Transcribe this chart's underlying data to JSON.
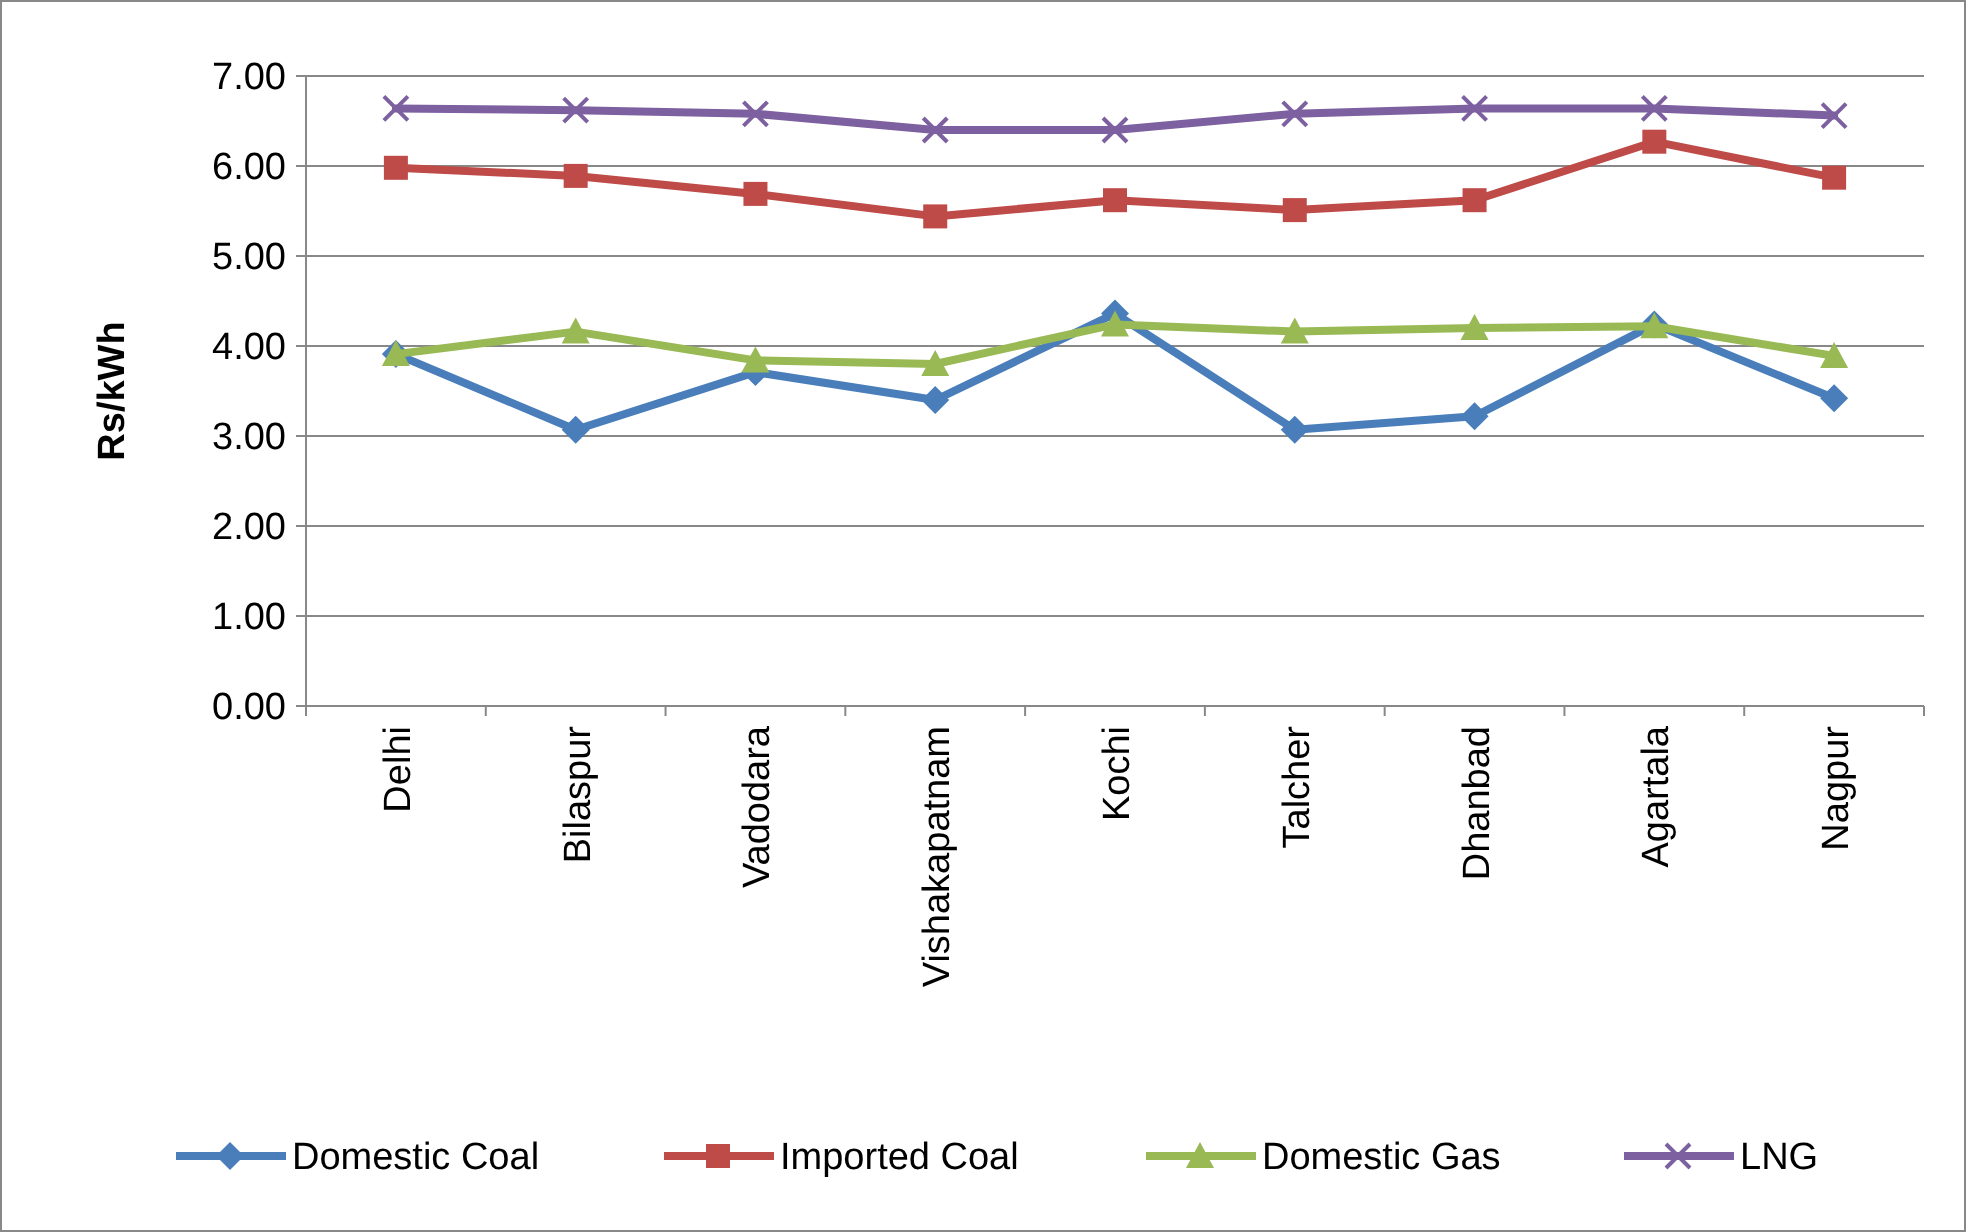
{
  "chart_data": {
    "type": "line",
    "ylabel": "Rs/kWh",
    "categories": [
      "Delhi",
      "Bilaspur",
      "Vadodara",
      "Vishakapatnam",
      "Kochi",
      "Talcher",
      "Dhanbad",
      "Agartala",
      "Nagpur"
    ],
    "series": [
      {
        "name": "Domestic Coal",
        "color": "#4a7ebb",
        "marker": "diamond",
        "values": [
          3.91,
          3.07,
          3.71,
          3.4,
          4.36,
          3.07,
          3.22,
          4.24,
          3.42
        ]
      },
      {
        "name": "Imported Coal",
        "color": "#be4b48",
        "marker": "square",
        "values": [
          5.98,
          5.89,
          5.69,
          5.44,
          5.62,
          5.51,
          5.62,
          6.27,
          5.87
        ]
      },
      {
        "name": "Domestic Gas",
        "color": "#98b954",
        "marker": "triangle",
        "values": [
          3.91,
          4.16,
          3.84,
          3.8,
          4.24,
          4.16,
          4.2,
          4.22,
          3.89
        ]
      },
      {
        "name": "LNG",
        "color": "#7d60a0",
        "marker": "cross",
        "values": [
          6.64,
          6.62,
          6.58,
          6.4,
          6.4,
          6.58,
          6.64,
          6.64,
          6.56
        ]
      }
    ],
    "ylim": [
      0,
      7
    ],
    "yticks": [
      {
        "value": 0,
        "label": "0.00"
      },
      {
        "value": 1,
        "label": "1.00"
      },
      {
        "value": 2,
        "label": "2.00"
      },
      {
        "value": 3,
        "label": "3.00"
      },
      {
        "value": 4,
        "label": "4.00"
      },
      {
        "value": 5,
        "label": "5.00"
      },
      {
        "value": 6,
        "label": "6.00"
      },
      {
        "value": 7,
        "label": "7.00"
      }
    ],
    "grid": "y",
    "legend": "bottom"
  }
}
